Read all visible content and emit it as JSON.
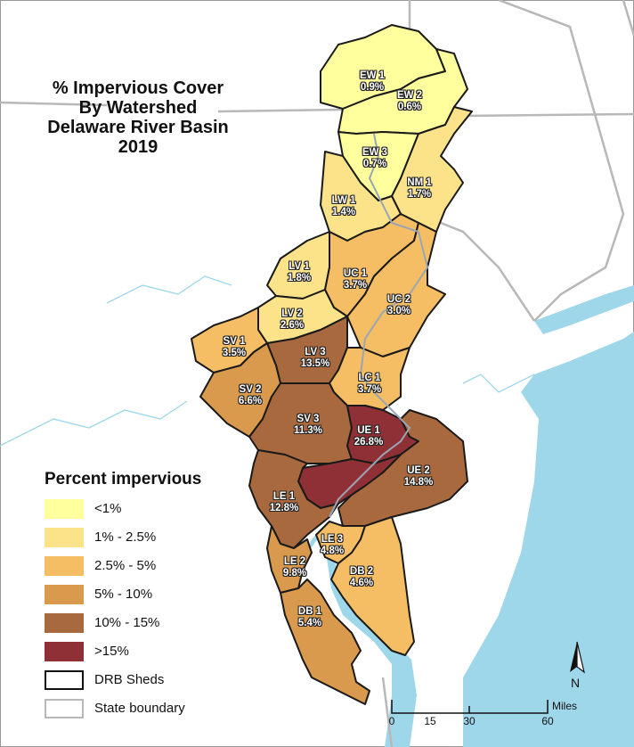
{
  "title": {
    "line1": "% Impervious Cover",
    "line2": "By Watershed",
    "line3": "Delaware River Basin",
    "line4": "2019"
  },
  "colors": {
    "class_lt1": "#ffff9d",
    "class_1_25": "#fce38a",
    "class_25_5": "#f5bd64",
    "class_5_10": "#d99a4e",
    "class_10_15": "#a8693f",
    "class_gt15": "#8e3035",
    "water": "#9fd7ea",
    "land": "#ffffff"
  },
  "watersheds": [
    {
      "name": "EW 1",
      "value": "0.9%"
    },
    {
      "name": "EW 2",
      "value": "0.6%"
    },
    {
      "name": "EW 3",
      "value": "0.7%"
    },
    {
      "name": "NM 1",
      "value": "1.7%"
    },
    {
      "name": "LW 1",
      "value": "1.4%"
    },
    {
      "name": "LV 1",
      "value": "1.8%"
    },
    {
      "name": "UC 1",
      "value": "3.7%"
    },
    {
      "name": "UC 2",
      "value": "3.0%"
    },
    {
      "name": "LV 2",
      "value": "2.6%"
    },
    {
      "name": "SV 1",
      "value": "3.5%"
    },
    {
      "name": "LV 3",
      "value": "13.5%"
    },
    {
      "name": "LC 1",
      "value": "3.7%"
    },
    {
      "name": "SV 2",
      "value": "6.6%"
    },
    {
      "name": "SV 3",
      "value": "11.3%"
    },
    {
      "name": "UE 1",
      "value": "26.8%"
    },
    {
      "name": "UE 2",
      "value": "14.8%"
    },
    {
      "name": "LE 1",
      "value": "12.8%"
    },
    {
      "name": "LE 3",
      "value": "4.8%"
    },
    {
      "name": "LE 2",
      "value": "9.8%"
    },
    {
      "name": "DB 2",
      "value": "4.6%"
    },
    {
      "name": "DB 1",
      "value": "5.4%"
    }
  ],
  "legend": {
    "title": "Percent impervious",
    "items": [
      {
        "label": "<1%",
        "icon": "swatch"
      },
      {
        "label": "1% - 2.5%",
        "icon": "swatch"
      },
      {
        "label": "2.5% - 5%",
        "icon": "swatch"
      },
      {
        "label": "5% - 10%",
        "icon": "swatch"
      },
      {
        "label": "10% - 15%",
        "icon": "swatch"
      },
      {
        "label": ">15%",
        "icon": "swatch"
      },
      {
        "label": "DRB Sheds",
        "icon": "outline-box"
      },
      {
        "label": "State boundary",
        "icon": "gray-outline-box"
      }
    ]
  },
  "scale": {
    "ticks": [
      "0",
      "15",
      "30",
      "60"
    ],
    "units": "Miles"
  },
  "north": {
    "label": "N",
    "icon": "north-arrow-icon"
  }
}
